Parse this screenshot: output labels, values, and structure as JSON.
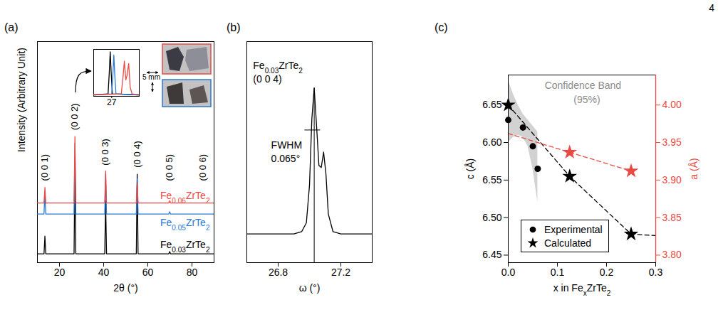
{
  "page_number": "4",
  "chart_data": [
    {
      "panel": "(a)",
      "type": "line",
      "x_label": "2θ (°)",
      "y_label": "Intensity (Arbitrary Unit)",
      "xlim": [
        10,
        90
      ],
      "xticks": [
        20,
        40,
        60,
        80
      ],
      "ylim": [
        0,
        100
      ],
      "tick_labels": "x",
      "series": [
        {
          "name": "Fe0.06ZrTe2",
          "color": "#ea4a44",
          "x": [
            10,
            13.0,
            13.4,
            13.8,
            26.6,
            27.0,
            27.4,
            40.5,
            40.9,
            41.3,
            54.8,
            55.2,
            55.6,
            69.5,
            69.9,
            70.3,
            90
          ],
          "values": [
            27,
            27,
            34,
            27,
            27,
            57,
            27,
            27,
            41.5,
            27,
            27,
            36,
            27,
            27,
            28,
            27,
            27
          ]
        },
        {
          "name": "Fe0.05ZrTe2",
          "color": "#2a78d4",
          "x": [
            10,
            13.0,
            13.4,
            13.8,
            26.6,
            27.0,
            27.4,
            40.5,
            40.9,
            41.3,
            54.8,
            55.2,
            55.6,
            69.5,
            69.9,
            70.3,
            90
          ],
          "values": [
            22,
            22,
            32,
            22,
            22,
            54,
            22,
            22,
            40,
            22,
            22,
            38,
            22,
            22,
            23,
            22,
            22
          ]
        },
        {
          "name": "Fe0.03ZrTe2",
          "color": "#000000",
          "x": [
            10,
            13.0,
            13.4,
            13.8,
            26.6,
            27.0,
            27.4,
            40.5,
            40.9,
            41.3,
            54.8,
            55.2,
            55.6,
            69.5,
            69.9,
            70.3,
            90
          ],
          "values": [
            4,
            4,
            12,
            4,
            4,
            45,
            4,
            4,
            28,
            4,
            4,
            40,
            4,
            4,
            5,
            4,
            4
          ]
        }
      ],
      "peak_labels": [
        {
          "label": "(0 0 1)",
          "x": 13.4,
          "y": 37
        },
        {
          "label": "(0 0 2)",
          "x": 27.0,
          "y": 60
        },
        {
          "label": "(0 0 3)",
          "x": 40.9,
          "y": 44
        },
        {
          "label": "(0 0 4)",
          "x": 55.2,
          "y": 43
        },
        {
          "label": "(0 0 5)",
          "x": 69.9,
          "y": 37
        },
        {
          "label": "(0 0 6)",
          "x": 85.0,
          "y": 37
        }
      ],
      "inset": {
        "type": "line",
        "xlim": [
          26.25,
          28.15
        ],
        "xticks": [
          27
        ],
        "ylim": [
          0,
          100
        ],
        "tick_labels": "x",
        "series": [
          {
            "color": "#000000",
            "x": [
              26.25,
              26.85,
              26.9,
              26.94,
              26.98,
              27.03,
              28.15
            ],
            "values": [
              3,
              5,
              50,
              95,
              50,
              5,
              3
            ]
          },
          {
            "color": "#2a78d4",
            "x": [
              26.25,
              27.0,
              27.05,
              27.09,
              27.13,
              27.18,
              28.15
            ],
            "values": [
              3,
              5,
              45,
              88,
              45,
              5,
              3
            ]
          },
          {
            "color": "#ea4a44",
            "x": [
              26.25,
              27.4,
              27.47,
              27.53,
              27.59,
              27.64,
              27.71,
              27.77,
              27.85,
              28.15
            ],
            "values": [
              3,
              5,
              40,
              75,
              35,
              45,
              70,
              20,
              5,
              3
            ]
          }
        ]
      },
      "annotations": [
        {
          "text": "5 mm"
        }
      ]
    },
    {
      "panel": "(b)",
      "type": "line",
      "x_label": "ω (°)",
      "xlim": [
        26.6,
        27.4
      ],
      "xticks": [
        26.8,
        27.2
      ],
      "ylim": [
        0,
        100
      ],
      "tick_labels": "x",
      "series": [
        {
          "color": "#000000",
          "x": [
            26.6,
            26.9,
            26.95,
            26.98,
            27.0,
            27.015,
            27.03,
            27.045,
            27.06,
            27.075,
            27.09,
            27.105,
            27.12,
            27.15,
            27.2,
            27.4
          ],
          "values": [
            13,
            13,
            14,
            18,
            35,
            65,
            79,
            62,
            44,
            43,
            50,
            40,
            22,
            14,
            13,
            13
          ]
        }
      ],
      "fwhm": {
        "x": [
          26.97,
          27.07
        ],
        "y": 60
      },
      "annotations": [
        {
          "text": "Fe0.03ZrTe2",
          "x": 26.64,
          "y": 89
        },
        {
          "text": "(0 0 4)",
          "x": 26.64,
          "y": 83
        },
        {
          "text": "FWHM",
          "x": 26.755,
          "y": 53
        },
        {
          "text": "0.065°",
          "x": 26.755,
          "y": 47
        }
      ]
    },
    {
      "panel": "(c)",
      "type": "scatter",
      "x_label": "x in FexZrTe2",
      "y_label": "c (Å)",
      "y2_label": "a (Å)",
      "xlim": [
        0,
        0.3
      ],
      "xticks": [
        {
          "value": 0,
          "label": "0.0"
        },
        0.1,
        0.2,
        0.3
      ],
      "ylim": [
        6.44,
        6.69
      ],
      "yticks": [
        6.45,
        {
          "value": 6.5,
          "label": "6.50"
        },
        6.55,
        {
          "value": 6.6,
          "label": "6.60"
        },
        6.65
      ],
      "y2lim": [
        3.79,
        4.04
      ],
      "y2ticks": [
        {
          "value": 3.8,
          "label": "3.80"
        },
        3.85,
        {
          "value": 3.9,
          "label": "3.90"
        },
        3.95,
        {
          "value": 4.0,
          "label": "4.00"
        }
      ],
      "legend": "bottom-left",
      "confidence_band": {
        "color": "#d2d2d2",
        "x": [
          0,
          0.01,
          0.02,
          0.03,
          0.04,
          0.05,
          0.06
        ],
        "lower": [
          6.6,
          6.607,
          6.61,
          6.607,
          6.595,
          6.565,
          6.52
        ],
        "upper": [
          6.683,
          6.665,
          6.65,
          6.638,
          6.63,
          6.622,
          6.614
        ]
      },
      "series": [
        {
          "type": "line",
          "line_style": "dashed",
          "color": "#000000",
          "x": [
            0,
            0.125,
            0.25,
            0.3
          ],
          "values": [
            6.65,
            6.555,
            6.478,
            6.476
          ]
        },
        {
          "type": "line",
          "line_style": "dashed",
          "color": "#ea4a44",
          "axis": "y2",
          "x": [
            0,
            0.125,
            0.25
          ],
          "values": [
            3.962,
            3.937,
            3.912
          ]
        },
        {
          "name": "Experimental",
          "type": "scatter",
          "marker": "circle",
          "color": "#000000",
          "x": [
            0,
            0.03,
            0.05,
            0.06
          ],
          "values": [
            6.63,
            6.62,
            6.595,
            6.565
          ]
        },
        {
          "name": "Calculated",
          "type": "scatter",
          "marker": "star",
          "color": "#000000",
          "x": [
            0,
            0.125,
            0.25
          ],
          "values": [
            6.65,
            6.555,
            6.478
          ]
        },
        {
          "type": "scatter",
          "marker": "star",
          "color": "#ea4a44",
          "axis": "y2",
          "x": [
            0.125,
            0.25
          ],
          "values": [
            3.937,
            3.912
          ]
        }
      ],
      "annotations": [
        {
          "text": "Confidence Band",
          "x": 0.152,
          "y": 6.676,
          "color": "#8c8c8c"
        },
        {
          "text": "(95%)",
          "x": 0.16,
          "y": 6.657,
          "color": "#8c8c8c"
        }
      ]
    }
  ]
}
